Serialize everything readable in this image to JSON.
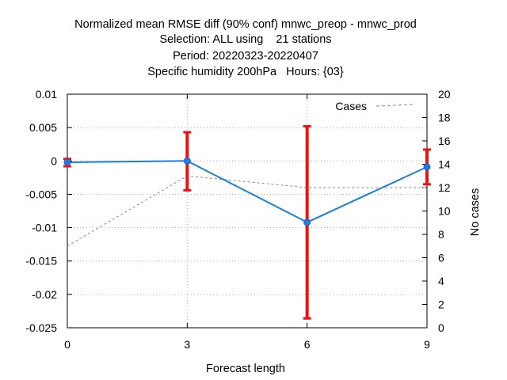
{
  "chart_data": {
    "type": "line",
    "title": [
      "Normalized mean RMSE diff (90% conf) mnwc_preop - mnwc_prod",
      "Selection: ALL using    21 stations",
      "Period: 20220323-20220407",
      "Specific humidity 200hPa   Hours: {03}"
    ],
    "xlabel": "Forecast length",
    "ylabel": "",
    "y2label": "No cases",
    "xlim": [
      0,
      9
    ],
    "ylim": [
      -0.025,
      0.01
    ],
    "y2lim": [
      0,
      20
    ],
    "x_ticks": [
      "0",
      "3",
      "6",
      "9"
    ],
    "y_ticks": [
      "0.01",
      "0.005",
      "0",
      "-0.005",
      "-0.01",
      "-0.015",
      "-0.02",
      "-0.025"
    ],
    "y2_ticks": [
      "20",
      "18",
      "16",
      "14",
      "12",
      "10",
      "8",
      "6",
      "4",
      "2",
      "0"
    ],
    "grid": true,
    "legend": {
      "placement": "top-right",
      "entries": [
        "Cases"
      ]
    },
    "x": [
      0,
      3,
      6,
      9
    ],
    "series": [
      {
        "axis": "y",
        "values": [
          -0.0002,
          0.0,
          -0.0092,
          -0.0009
        ],
        "err_low": [
          -0.0008,
          -0.0044,
          -0.0236,
          -0.0035
        ],
        "err_high": [
          0.0003,
          0.0043,
          0.0052,
          0.0017
        ],
        "color": "#1a7fd9",
        "error_color": "#ee1111"
      },
      {
        "name": "Cases",
        "axis": "y2",
        "values": [
          7,
          13,
          12,
          12
        ],
        "color": "#888888",
        "dashed": true
      }
    ]
  }
}
